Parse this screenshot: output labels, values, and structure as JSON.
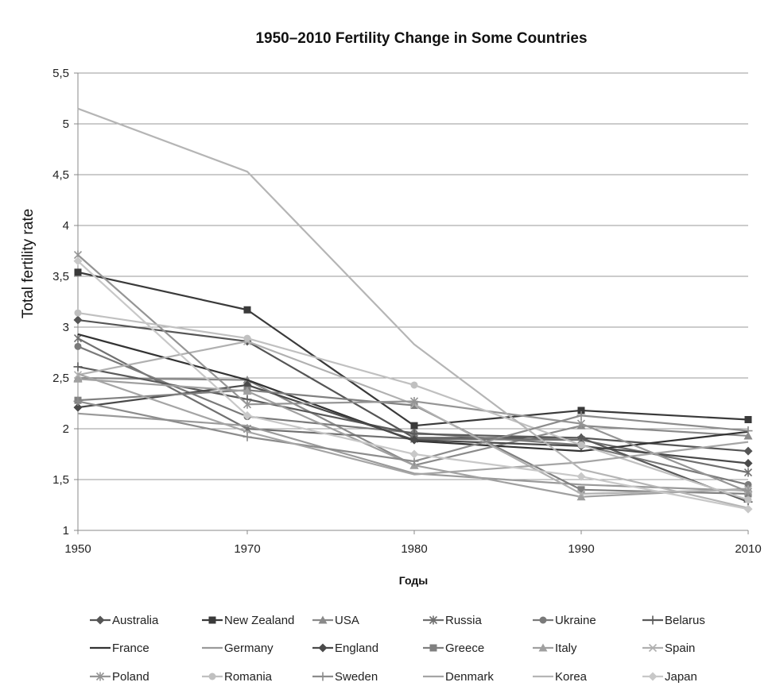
{
  "chart_data": {
    "type": "line",
    "title": "1950–2010 Fertility Change in Some Countries",
    "xlabel": "Годы",
    "ylabel": "Total fertility rate",
    "x": [
      1950,
      1970,
      1980,
      1990,
      2010
    ],
    "x_tick_labels": [
      "1950",
      "1970",
      "1980",
      "1990",
      "2010"
    ],
    "ylim": [
      1,
      5.5
    ],
    "y_ticks": [
      1,
      1.5,
      2,
      2.5,
      3,
      3.5,
      4,
      4.5,
      5,
      5.5
    ],
    "y_tick_labels": [
      "1",
      "1,5",
      "2",
      "2,5",
      "3",
      "3,5",
      "4",
      "4,5",
      "5",
      "5,5"
    ],
    "grid": "horizontal",
    "legend_position": "bottom",
    "series": [
      {
        "name": "Australia",
        "values": [
          3.07,
          2.86,
          1.91,
          1.91,
          1.78
        ],
        "color": "#555555",
        "marker": "diamond"
      },
      {
        "name": "New Zealand",
        "values": [
          3.54,
          3.17,
          2.03,
          2.18,
          2.09
        ],
        "color": "#3a3a3a",
        "marker": "square"
      },
      {
        "name": "USA",
        "values": [
          2.5,
          2.48,
          1.64,
          2.03,
          1.93
        ],
        "color": "#8a8a8a",
        "marker": "triangle"
      },
      {
        "name": "Russia",
        "values": [
          2.89,
          2.0,
          1.9,
          1.89,
          1.57
        ],
        "color": "#707070",
        "marker": "star"
      },
      {
        "name": "Ukraine",
        "values": [
          2.81,
          2.12,
          1.96,
          1.84,
          1.45
        ],
        "color": "#7a7a7a",
        "marker": "circle"
      },
      {
        "name": "Belarus",
        "values": [
          2.61,
          2.29,
          1.95,
          1.91,
          1.28
        ],
        "color": "#5a5a5a",
        "marker": "plus"
      },
      {
        "name": "France",
        "values": [
          2.93,
          2.48,
          1.88,
          1.78,
          1.97
        ],
        "color": "#333333",
        "marker": "none"
      },
      {
        "name": "Germany",
        "values": [
          2.15,
          2.03,
          1.56,
          1.45,
          1.39
        ],
        "color": "#9a9a9a",
        "marker": "none"
      },
      {
        "name": "England",
        "values": [
          2.21,
          2.43,
          1.89,
          1.83,
          1.66
        ],
        "color": "#4a4a4a",
        "marker": "diamond"
      },
      {
        "name": "Greece",
        "values": [
          2.28,
          2.38,
          2.23,
          1.4,
          1.36
        ],
        "color": "#808080",
        "marker": "square"
      },
      {
        "name": "Italy",
        "values": [
          2.49,
          2.37,
          1.64,
          1.33,
          1.41
        ],
        "color": "#a0a0a0",
        "marker": "triangle"
      },
      {
        "name": "Spain",
        "values": [
          2.53,
          2.86,
          2.24,
          1.36,
          1.4
        ],
        "color": "#b0b0b0",
        "marker": "x"
      },
      {
        "name": "Poland",
        "values": [
          3.71,
          2.24,
          2.27,
          2.05,
          1.38
        ],
        "color": "#959595",
        "marker": "star"
      },
      {
        "name": "Romania",
        "values": [
          3.14,
          2.89,
          2.43,
          1.84,
          1.3
        ],
        "color": "#c0c0c0",
        "marker": "circle"
      },
      {
        "name": "Sweden",
        "values": [
          2.27,
          1.92,
          1.68,
          2.13,
          1.98
        ],
        "color": "#8c8c8c",
        "marker": "plus"
      },
      {
        "name": "Denmark",
        "values": [
          2.54,
          1.97,
          1.55,
          1.67,
          1.87
        ],
        "color": "#a5a5a5",
        "marker": "none"
      },
      {
        "name": "Korea",
        "values": [
          5.15,
          4.53,
          2.83,
          1.6,
          1.22
        ],
        "color": "#b5b5b5",
        "marker": "none"
      },
      {
        "name": "Japan",
        "values": [
          3.65,
          2.13,
          1.75,
          1.53,
          1.21
        ],
        "color": "#c8c8c8",
        "marker": "diamond"
      }
    ]
  }
}
